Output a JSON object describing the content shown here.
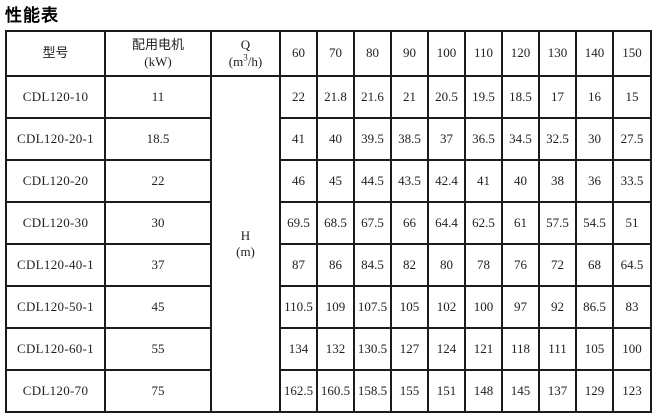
{
  "colors": {
    "background": "#ffffff",
    "border": "#1b1b1b",
    "text": "#1f1f1f"
  },
  "title": "性能表",
  "table": {
    "header": {
      "model": "型号",
      "motor": {
        "line1": "配用电机",
        "line2": "(kW)"
      },
      "q": {
        "symbol": "Q",
        "unit_open": "(m",
        "unit_sup": "3",
        "unit_close": "/h)"
      },
      "flows": [
        "60",
        "70",
        "80",
        "90",
        "100",
        "110",
        "120",
        "130",
        "140",
        "150"
      ]
    },
    "h": {
      "line1": "H",
      "line2": "(m)"
    },
    "rows": [
      {
        "model": "CDL120-10",
        "kw": "11",
        "values": [
          "22",
          "21.8",
          "21.6",
          "21",
          "20.5",
          "19.5",
          "18.5",
          "17",
          "16",
          "15"
        ]
      },
      {
        "model": "CDL120-20-1",
        "kw": "18.5",
        "values": [
          "41",
          "40",
          "39.5",
          "38.5",
          "37",
          "36.5",
          "34.5",
          "32.5",
          "30",
          "27.5"
        ]
      },
      {
        "model": "CDL120-20",
        "kw": "22",
        "values": [
          "46",
          "45",
          "44.5",
          "43.5",
          "42.4",
          "41",
          "40",
          "38",
          "36",
          "33.5"
        ]
      },
      {
        "model": "CDL120-30",
        "kw": "30",
        "values": [
          "69.5",
          "68.5",
          "67.5",
          "66",
          "64.4",
          "62.5",
          "61",
          "57.5",
          "54.5",
          "51"
        ]
      },
      {
        "model": "CDL120-40-1",
        "kw": "37",
        "values": [
          "87",
          "86",
          "84.5",
          "82",
          "80",
          "78",
          "76",
          "72",
          "68",
          "64.5"
        ]
      },
      {
        "model": "CDL120-50-1",
        "kw": "45",
        "values": [
          "110.5",
          "109",
          "107.5",
          "105",
          "102",
          "100",
          "97",
          "92",
          "86.5",
          "83"
        ]
      },
      {
        "model": "CDL120-60-1",
        "kw": "55",
        "values": [
          "134",
          "132",
          "130.5",
          "127",
          "124",
          "121",
          "118",
          "111",
          "105",
          "100"
        ]
      },
      {
        "model": "CDL120-70",
        "kw": "75",
        "values": [
          "162.5",
          "160.5",
          "158.5",
          "155",
          "151",
          "148",
          "145",
          "137",
          "129",
          "123"
        ]
      }
    ]
  }
}
